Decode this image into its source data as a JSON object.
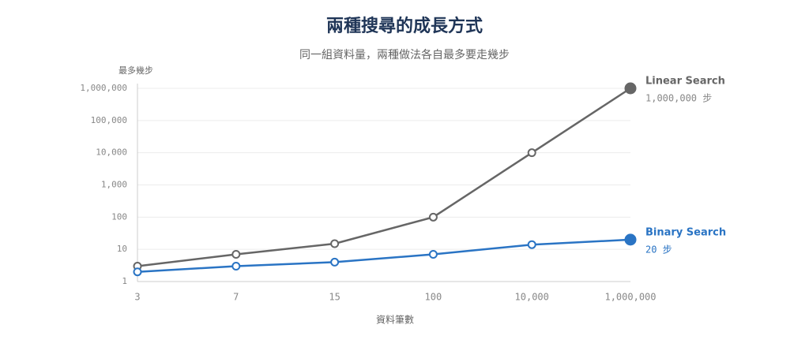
{
  "chart_data": {
    "type": "line",
    "title": "兩種搜尋的成長方式",
    "subtitle": "同一組資料量，兩種做法各自最多要走幾步",
    "y_label": "最多幾步",
    "x_label": "資料筆數",
    "categories": [
      "3",
      "7",
      "15",
      "100",
      "10,000",
      "1,000,000"
    ],
    "series": [
      {
        "name": "Linear Search",
        "color": "#666666",
        "values": [
          3,
          7,
          15,
          100,
          10000,
          1000000
        ],
        "value_labels": [
          null,
          null,
          null,
          null,
          null,
          "1,000,000 步"
        ]
      },
      {
        "name": "Binary Search",
        "color": "#2a74c4",
        "values": [
          2,
          3,
          4,
          7,
          14,
          20
        ],
        "value_labels": [
          null,
          null,
          null,
          null,
          null,
          "20 步"
        ]
      }
    ],
    "ylim": [
      1,
      1000000
    ],
    "log_y": true,
    "yticks": [
      1,
      10,
      100,
      {
        "value": 1000,
        "label": "1,000"
      },
      {
        "value": 10000,
        "label": "10,000"
      },
      {
        "value": 100000,
        "label": "100,000"
      },
      {
        "value": 1000000,
        "label": "1,000,000"
      }
    ],
    "grid": true
  }
}
